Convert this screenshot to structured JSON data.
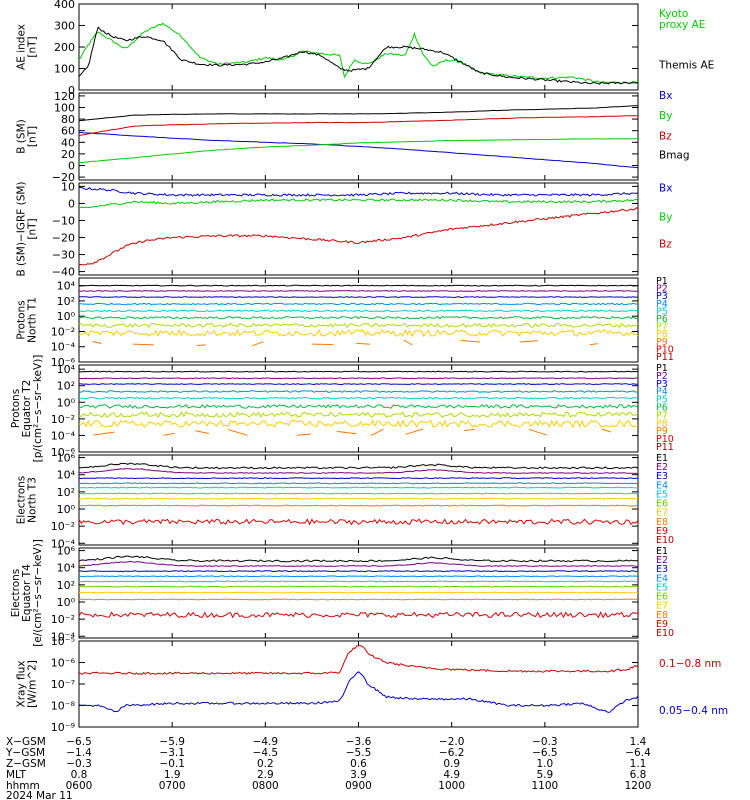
{
  "chart_data": {
    "type": "line",
    "x_hours": [
      6,
      7,
      8,
      9,
      10,
      11,
      12
    ],
    "panels": [
      {
        "id": "ae",
        "ylabel": [
          "AE index",
          "[nT]"
        ],
        "ymin": 0,
        "ymax": 400,
        "ticks": [
          "400",
          "300",
          "200",
          "100",
          "0"
        ],
        "tick_values": [
          400,
          300,
          200,
          100,
          0
        ],
        "series": [
          {
            "name": "Kyoto proxy AE",
            "color": "#00cc00",
            "style": "noisy",
            "x": [
              6.0,
              6.1,
              6.2,
              6.35,
              6.5,
              6.7,
              6.9,
              7.1,
              7.3,
              7.5,
              7.8,
              8.0,
              8.2,
              8.4,
              8.6,
              8.8,
              8.85,
              8.95,
              9.1,
              9.3,
              9.5,
              9.6,
              9.7,
              9.8,
              9.95,
              10.1,
              10.3,
              10.5,
              10.8,
              11.0,
              11.3,
              11.6,
              12.0
            ],
            "y": [
              140,
              210,
              270,
              230,
              190,
              270,
              310,
              250,
              150,
              120,
              130,
              150,
              140,
              180,
              170,
              160,
              60,
              140,
              120,
              170,
              160,
              260,
              160,
              110,
              140,
              130,
              80,
              70,
              60,
              55,
              60,
              35,
              35
            ]
          },
          {
            "name": "Themis AE",
            "color": "#000000",
            "style": "noisy",
            "x": [
              6.0,
              6.1,
              6.2,
              6.35,
              6.5,
              6.7,
              6.9,
              7.1,
              7.3,
              7.5,
              7.8,
              8.0,
              8.2,
              8.4,
              8.6,
              8.8,
              8.9,
              9.1,
              9.3,
              9.5,
              9.7,
              9.9,
              10.1,
              10.3,
              10.6,
              10.9,
              11.2,
              11.5,
              12.0
            ],
            "y": [
              60,
              110,
              290,
              250,
              230,
              250,
              230,
              140,
              120,
              115,
              120,
              130,
              150,
              180,
              160,
              100,
              90,
              100,
              200,
              200,
              190,
              175,
              130,
              80,
              60,
              50,
              40,
              30,
              35
            ]
          }
        ],
        "labels": [
          {
            "lines": [
              "Kyoto",
              "proxy AE"
            ],
            "color": "#00cc00",
            "value": 340
          },
          {
            "lines": [
              "Themis AE"
            ],
            "color": "#000000",
            "value": 100
          }
        ]
      },
      {
        "id": "bsm",
        "ylabel": [
          "B (SM)",
          "[nT]"
        ],
        "ymin": -25,
        "ymax": 125,
        "ticks": [
          "120",
          "100",
          "80",
          "60",
          "40",
          "20",
          "0",
          "−20"
        ],
        "tick_values": [
          120,
          100,
          80,
          60,
          40,
          20,
          0,
          -20
        ],
        "series": [
          {
            "name": "Bx",
            "color": "#0000cc",
            "style": "smooth",
            "x": [
              6.0,
              6.5,
              7.0,
              7.5,
              8.0,
              8.5,
              9.0,
              9.5,
              10.0,
              10.5,
              11.0,
              11.5,
              12.0
            ],
            "y": [
              57,
              52,
              47,
              43,
              40,
              37,
              33,
              28,
              22,
              16,
              10,
              4,
              -4
            ]
          },
          {
            "name": "By",
            "color": "#00cc00",
            "style": "smooth",
            "x": [
              6.0,
              6.5,
              7.0,
              7.5,
              8.0,
              8.5,
              9.0,
              9.5,
              10.0,
              10.5,
              11.0,
              11.5,
              12.0
            ],
            "y": [
              5,
              12,
              20,
              27,
              32,
              35,
              39,
              41,
              43,
              44,
              45,
              46,
              46
            ]
          },
          {
            "name": "Bz",
            "color": "#cc0000",
            "style": "smooth",
            "x": [
              6.0,
              6.3,
              6.6,
              7.0,
              7.5,
              8.0,
              8.5,
              9.0,
              9.5,
              10.0,
              10.5,
              11.0,
              11.5,
              12.0
            ],
            "y": [
              52,
              60,
              68,
              70,
              72,
              73,
              74,
              74,
              76,
              78,
              81,
              83,
              84,
              86
            ]
          },
          {
            "name": "Bmag",
            "color": "#000000",
            "style": "smooth",
            "x": [
              6.0,
              6.3,
              6.6,
              7.0,
              7.5,
              8.0,
              8.5,
              9.0,
              9.5,
              10.0,
              10.5,
              11.0,
              11.5,
              12.0
            ],
            "y": [
              77,
              82,
              87,
              88,
              89,
              89,
              89,
              89,
              90,
              92,
              95,
              97,
              99,
              103
            ]
          }
        ],
        "labels": [
          {
            "lines": [
              "Bx"
            ],
            "color": "#0000cc",
            "value": 115
          },
          {
            "lines": [
              "By"
            ],
            "color": "#00cc00",
            "value": 80
          },
          {
            "lines": [
              "Bz"
            ],
            "color": "#cc0000",
            "value": 45
          },
          {
            "lines": [
              "Bmag"
            ],
            "color": "#000000",
            "value": 12
          }
        ]
      },
      {
        "id": "bdiff",
        "ylabel": [
          "B (SM)−IGRF (SM)",
          "[nT]"
        ],
        "ymin": -42,
        "ymax": 12,
        "ticks": [
          "10",
          "0",
          "−10",
          "−20",
          "−30",
          "−40"
        ],
        "tick_values": [
          10,
          0,
          -10,
          -20,
          -30,
          -40
        ],
        "series": [
          {
            "name": "Bx",
            "color": "#0000cc",
            "style": "noisy",
            "x": [
              6.0,
              6.3,
              6.6,
              7.0,
              7.5,
              8.0,
              8.5,
              9.0,
              9.5,
              10.0,
              10.5,
              11.0,
              11.5,
              12.0
            ],
            "y": [
              9,
              8,
              6,
              5,
              5,
              5,
              5,
              5,
              6,
              6,
              5,
              5,
              5,
              6
            ]
          },
          {
            "name": "By",
            "color": "#00cc00",
            "style": "noisy",
            "x": [
              6.0,
              6.3,
              6.6,
              7.0,
              7.5,
              8.0,
              8.5,
              9.0,
              9.5,
              10.0,
              10.5,
              11.0,
              11.5,
              12.0
            ],
            "y": [
              -3,
              -1,
              1,
              0,
              1,
              2,
              2,
              2,
              2,
              2,
              1,
              1,
              1,
              2
            ]
          },
          {
            "name": "Bz",
            "color": "#cc0000",
            "style": "noisy",
            "x": [
              6.0,
              6.15,
              6.3,
              6.5,
              6.7,
              7.0,
              7.5,
              8.0,
              8.5,
              9.0,
              9.5,
              10.0,
              10.5,
              11.0,
              11.5,
              12.0
            ],
            "y": [
              -36,
              -35,
              -31,
              -25,
              -22,
              -20,
              -19,
              -19,
              -21,
              -23,
              -20,
              -15,
              -12,
              -9,
              -6,
              -3
            ]
          }
        ],
        "labels": [
          {
            "lines": [
              "Bx"
            ],
            "color": "#0000cc",
            "value": 7
          },
          {
            "lines": [
              "By"
            ],
            "color": "#00cc00",
            "value": -10
          },
          {
            "lines": [
              "Bz"
            ],
            "color": "#cc0000",
            "value": -26
          }
        ]
      },
      {
        "id": "pn",
        "log": true,
        "ylabel": [
          "Protons",
          "North T1"
        ],
        "ymin": -6,
        "ymax": 5,
        "ticks": [
          "10⁴",
          "10²",
          "10⁰",
          "10⁻²",
          "10⁻⁴",
          "10⁻⁶"
        ],
        "tick_values": [
          4,
          2,
          0,
          -2,
          -4,
          -6
        ],
        "channels": [
          "P1",
          "P2",
          "P3",
          "P4",
          "P5",
          "P6",
          "P7",
          "P8",
          "P9",
          "P10",
          "P11"
        ],
        "levels": [
          4.0,
          3.3,
          2.5,
          1.6,
          0.7,
          -0.2,
          -1.2,
          -2.2,
          -3.5,
          -4.5,
          -5.5
        ],
        "noise": [
          0.05,
          0.05,
          0.05,
          0.1,
          0.1,
          0.15,
          0.25,
          0.4,
          0,
          0,
          0
        ],
        "segments": [
          1,
          1,
          1,
          1,
          1,
          1,
          1,
          1,
          1,
          0,
          0
        ]
      },
      {
        "id": "pe",
        "log": true,
        "ylabel": [
          "Protons",
          "Equator T2",
          "[p/(cm²−s−sr−keV)]"
        ],
        "ymin": -6,
        "ymax": 4.5,
        "ticks": [
          "10⁴",
          "10²",
          "10⁰",
          "10⁻²",
          "10⁻⁴",
          "10⁻⁶"
        ],
        "tick_values": [
          4,
          2,
          0,
          -2,
          -4,
          -6
        ],
        "channels": [
          "P1",
          "P2",
          "P3",
          "P4",
          "P5",
          "P6",
          "P7",
          "P8",
          "P9",
          "P10",
          "P11"
        ],
        "levels": [
          3.7,
          2.9,
          2.2,
          1.3,
          0.5,
          -0.5,
          -1.5,
          -2.6,
          -3.6,
          -4.5,
          -5.3
        ],
        "noise": [
          0.05,
          0.05,
          0.05,
          0.1,
          0.1,
          0.2,
          0.3,
          0.4,
          0,
          0,
          0
        ],
        "segments": [
          1,
          1,
          1,
          1,
          1,
          1,
          1,
          1,
          1,
          0,
          0
        ]
      },
      {
        "id": "en",
        "log": true,
        "ylabel": [
          "Electrons",
          "North T3"
        ],
        "ymin": -4.2,
        "ymax": 6.3,
        "ticks": [
          "10⁶",
          "10⁴",
          "10²",
          "10⁰",
          "10⁻²",
          "10⁻⁴"
        ],
        "tick_values": [
          6,
          4,
          2,
          0,
          -2,
          -4
        ],
        "channels": [
          "E1",
          "E2",
          "E3",
          "E4",
          "E5",
          "E6",
          "E7",
          "E8",
          "E9",
          "E10"
        ],
        "levels": [
          4.8,
          4.2,
          3.6,
          3.0,
          2.5,
          1.8,
          1.2,
          0.4,
          -1.5,
          -3.5
        ],
        "noise": [
          0.1,
          0.05,
          0.05,
          0.05,
          0.05,
          0.05,
          0.05,
          0.05,
          0.3,
          0
        ],
        "segments": [
          1,
          1,
          1,
          1,
          1,
          1,
          1,
          1,
          1,
          0
        ]
      },
      {
        "id": "ee",
        "log": true,
        "ylabel": [
          "Electrons",
          "Equator T4",
          "[e/(cm²−s−sr−keV)]"
        ],
        "ymin": -4.2,
        "ymax": 6.3,
        "ticks": [
          "10⁶",
          "10⁴",
          "10²",
          "10⁰",
          "10⁻²",
          "10⁻⁴"
        ],
        "tick_values": [
          6,
          4,
          2,
          0,
          -2,
          -4
        ],
        "channels": [
          "E1",
          "E2",
          "E3",
          "E4",
          "E5",
          "E6",
          "E7",
          "E8",
          "E9",
          "E10"
        ],
        "levels": [
          4.8,
          4.2,
          3.6,
          3.0,
          2.4,
          1.8,
          1.1,
          0.3,
          -1.5,
          -3.5
        ],
        "noise": [
          0.1,
          0.05,
          0.05,
          0.05,
          0.05,
          0.05,
          0.05,
          0.05,
          0.3,
          0
        ],
        "segments": [
          1,
          1,
          1,
          1,
          1,
          1,
          1,
          1,
          1,
          0
        ]
      },
      {
        "id": "xray",
        "log": true,
        "ylabel": [
          "Xray flux",
          "[W/m^2]"
        ],
        "ymin": -9,
        "ymax": -5,
        "ticks": [
          "10⁻⁵",
          "10⁻⁶",
          "10⁻⁷",
          "10⁻⁸",
          "10⁻⁹"
        ],
        "tick_values": [
          -5,
          -6,
          -7,
          -8,
          -9
        ],
        "series": [
          {
            "name": "0.1−0.8 nm",
            "color": "#cc0000",
            "style": "noisy",
            "x": [
              6.0,
              6.5,
              7.0,
              7.5,
              8.0,
              8.5,
              8.6,
              8.8,
              8.9,
              9.0,
              9.05,
              9.1,
              9.3,
              9.6,
              9.9,
              10.2,
              10.6,
              11.0,
              11.4,
              11.7,
              11.9,
              12.0
            ],
            "y": [
              -6.5,
              -6.5,
              -6.5,
              -6.5,
              -6.5,
              -6.5,
              -6.5,
              -6.45,
              -5.5,
              -5.2,
              -5.3,
              -5.6,
              -6.0,
              -6.2,
              -6.3,
              -6.35,
              -6.4,
              -6.4,
              -6.4,
              -6.4,
              -6.3,
              -6.1
            ]
          },
          {
            "name": "0.05−0.4 nm",
            "color": "#0000cc",
            "style": "noisy",
            "x": [
              6.0,
              6.2,
              6.4,
              6.5,
              7.0,
              7.5,
              8.0,
              8.5,
              8.8,
              8.9,
              9.0,
              9.05,
              9.1,
              9.3,
              9.6,
              9.9,
              10.2,
              10.6,
              11.0,
              11.4,
              11.6,
              11.7,
              11.85,
              12.0
            ],
            "y": [
              -8.0,
              -8.0,
              -8.3,
              -8.0,
              -7.9,
              -7.9,
              -7.9,
              -7.9,
              -7.8,
              -6.9,
              -6.4,
              -6.6,
              -7.0,
              -7.6,
              -7.7,
              -7.7,
              -7.7,
              -8.0,
              -8.0,
              -7.9,
              -8.2,
              -8.3,
              -7.8,
              -7.6
            ]
          }
        ],
        "labels": [
          {
            "lines": [
              "0.1−0.8 nm"
            ],
            "color": "#cc0000",
            "value": -6.2
          },
          {
            "lines": [
              "0.05−0.4 nm"
            ],
            "color": "#0000cc",
            "value": -8.4
          }
        ]
      }
    ],
    "channel_colors": {
      "P1": "#000000",
      "P2": "#7a0080",
      "P3": "#0000cc",
      "P4": "#0088ff",
      "P5": "#00cccc",
      "P6": "#00bb44",
      "P7": "#aadd00",
      "P8": "#ffcc00",
      "P9": "#ff7700",
      "P10": "#dd0000",
      "P11": "#aa0000",
      "E1": "#000000",
      "E2": "#7a0080",
      "E3": "#0000cc",
      "E4": "#0088ff",
      "E5": "#00cccc",
      "E6": "#66cc00",
      "E7": "#ffcc00",
      "E8": "#ff7700",
      "E9": "#dd0000",
      "E10": "#aa0000"
    },
    "footer": {
      "rows": [
        {
          "label": "X−GSM",
          "values": [
            "−6.5",
            "−5.9",
            "−4.9",
            "−3.6",
            "−2.0",
            "−0.3",
            "1.4"
          ]
        },
        {
          "label": "Y−GSM",
          "values": [
            "−1.4",
            "−3.1",
            "−4.5",
            "−5.5",
            "−6.2",
            "−6.5",
            "−6.4"
          ]
        },
        {
          "label": "Z−GSM",
          "values": [
            "−0.3",
            "−0.1",
            "0.2",
            "0.6",
            "0.9",
            "1.0",
            "1.1"
          ]
        },
        {
          "label": "MLT",
          "values": [
            "0.8",
            "1.9",
            "2.9",
            "3.9",
            "4.9",
            "5.9",
            "6.8"
          ]
        },
        {
          "label": "hhmm",
          "values": [
            "0600",
            "0700",
            "0800",
            "0900",
            "1000",
            "1100",
            "1200"
          ]
        }
      ],
      "date": "2024 Mar 11"
    }
  }
}
